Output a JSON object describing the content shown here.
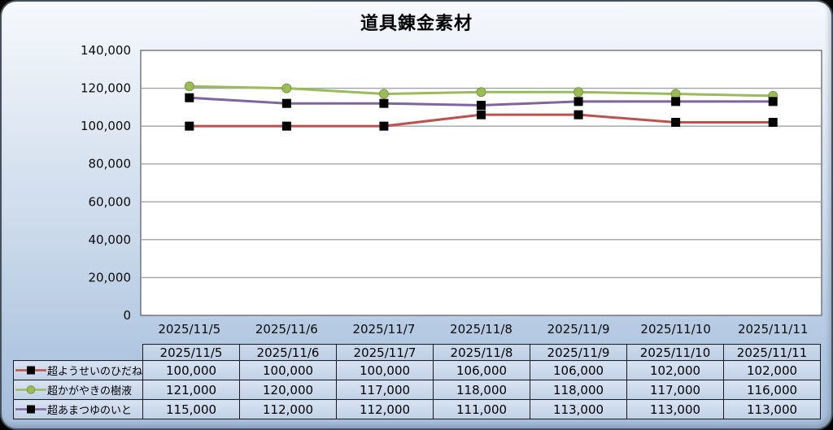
{
  "title": "道具錬金素材",
  "colors": {
    "series_red": "#C0504D",
    "series_green": "#9BBB59",
    "series_green_edge": "#7A9A3F",
    "series_purple": "#8064A2",
    "marker_black": "#000000",
    "gridline": "#9DA3A9",
    "plot_border": "#565B60",
    "plot_bg": "#FFFFFF",
    "page_bg_top": "#F6F9FC",
    "page_bg_bottom": "#A8BEDB",
    "table_cell_bg": "#CDDBEC"
  },
  "chart_data": {
    "type": "line",
    "title": "道具錬金素材",
    "categories": [
      "2025/11/5",
      "2025/11/6",
      "2025/11/7",
      "2025/11/8",
      "2025/11/9",
      "2025/11/10",
      "2025/11/11"
    ],
    "series": [
      {
        "name": "超ようせいのひだね",
        "values": [
          100000,
          100000,
          100000,
          106000,
          106000,
          102000,
          102000
        ],
        "line_color": "#C0504D",
        "marker": "square",
        "marker_color": "#000000"
      },
      {
        "name": "超かがやきの樹液",
        "values": [
          121000,
          120000,
          117000,
          118000,
          118000,
          117000,
          116000
        ],
        "line_color": "#9BBB59",
        "marker": "circle",
        "marker_color": "#9BBB59"
      },
      {
        "name": "超あまつゆのいと",
        "values": [
          115000,
          112000,
          112000,
          111000,
          113000,
          113000,
          113000
        ],
        "line_color": "#8064A2",
        "marker": "square",
        "marker_color": "#000000"
      }
    ],
    "xlabel": "",
    "ylabel": "",
    "ylim": [
      0,
      140000
    ],
    "ytick_step": 20000,
    "ytick_labels": [
      "0",
      "20,000",
      "40,000",
      "60,000",
      "80,000",
      "100,000",
      "120,000",
      "140,000"
    ],
    "grid": true,
    "legend_position": "table-left-keys"
  },
  "table": {
    "header": [
      "2025/11/5",
      "2025/11/6",
      "2025/11/7",
      "2025/11/8",
      "2025/11/9",
      "2025/11/10",
      "2025/11/11"
    ],
    "rows": [
      {
        "label": "超ようせいのひだね",
        "values": [
          "100,000",
          "100,000",
          "100,000",
          "106,000",
          "106,000",
          "102,000",
          "102,000"
        ]
      },
      {
        "label": "超かがやきの樹液",
        "values": [
          "121,000",
          "120,000",
          "117,000",
          "118,000",
          "118,000",
          "117,000",
          "116,000"
        ]
      },
      {
        "label": "超あまつゆのいと",
        "values": [
          "115,000",
          "112,000",
          "112,000",
          "111,000",
          "113,000",
          "113,000",
          "113,000"
        ]
      }
    ]
  }
}
